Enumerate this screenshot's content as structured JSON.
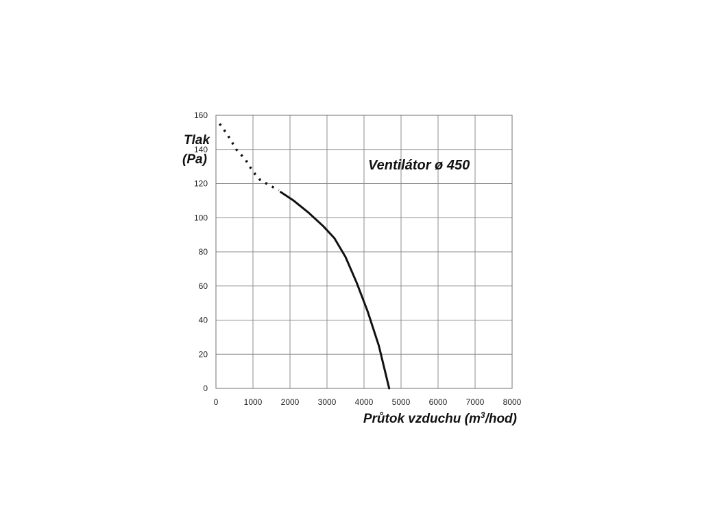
{
  "chart_data": {
    "type": "line",
    "ylabel_line1": "Tlak",
    "ylabel_line2": "(Pa)",
    "xlabel_text": "Průtok vzduchu (m",
    "xlabel_sup": "3",
    "xlabel_end": "/hod)",
    "annotation": "Ventilátor ø 450",
    "xlim": [
      0,
      8000
    ],
    "ylim": [
      0,
      160
    ],
    "x_ticks": [
      "0",
      "1000",
      "2000",
      "3000",
      "4000",
      "5000",
      "6000",
      "7000",
      "8000"
    ],
    "y_ticks": [
      "0",
      "20",
      "40",
      "60",
      "80",
      "100",
      "120",
      "140",
      "160"
    ],
    "grid": true,
    "series": [
      {
        "style": "dotted",
        "color": "#111111",
        "x": [
          100,
          300,
          550,
          800,
          1000,
          1200,
          1450,
          1700
        ],
        "y": [
          155,
          149,
          140,
          134,
          127,
          122,
          119,
          116
        ]
      },
      {
        "style": "solid",
        "color": "#111111",
        "x": [
          1750,
          2100,
          2500,
          2900,
          3200,
          3500,
          3800,
          4100,
          4400,
          4680
        ],
        "y": [
          115,
          110,
          103,
          95,
          88,
          77,
          62,
          45,
          25,
          0
        ]
      }
    ]
  }
}
